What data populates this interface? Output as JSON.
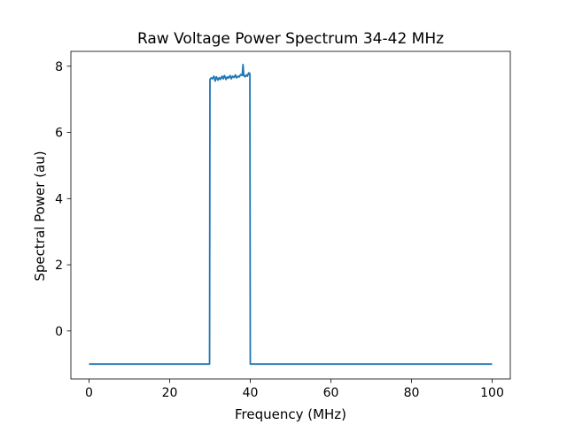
{
  "chart_data": {
    "type": "line",
    "title": "Raw Voltage Power Spectrum 34-42 MHz",
    "xlabel": "Frequency (MHz)",
    "ylabel": "Spectral Power (au)",
    "xlim": [
      -4.5,
      104.5
    ],
    "ylim": [
      -1.45,
      8.45
    ],
    "xticks": [
      0,
      20,
      40,
      60,
      80,
      100
    ],
    "yticks": [
      0,
      2,
      4,
      6,
      8
    ],
    "grid": false,
    "legend": "none",
    "series": [
      {
        "color": "#1f77b4",
        "x": [
          0,
          29.9,
          30,
          30.3,
          30.6,
          31.0,
          31.3,
          31.6,
          32.0,
          32.3,
          32.6,
          33.0,
          33.3,
          33.6,
          34.0,
          34.3,
          34.6,
          35.0,
          35.3,
          35.6,
          36.0,
          36.3,
          36.6,
          37.0,
          37.3,
          37.6,
          38.0,
          38.2,
          38.4,
          38.7,
          39.0,
          39.3,
          39.6,
          39.9,
          40,
          100
        ],
        "y": [
          -1.0,
          -1.0,
          7.6,
          7.65,
          7.62,
          7.7,
          7.55,
          7.68,
          7.58,
          7.66,
          7.6,
          7.7,
          7.62,
          7.72,
          7.6,
          7.68,
          7.64,
          7.72,
          7.62,
          7.7,
          7.66,
          7.74,
          7.65,
          7.7,
          7.68,
          7.75,
          7.72,
          8.05,
          7.72,
          7.68,
          7.74,
          7.7,
          7.8,
          7.78,
          -1.0,
          -1.0
        ]
      }
    ]
  }
}
